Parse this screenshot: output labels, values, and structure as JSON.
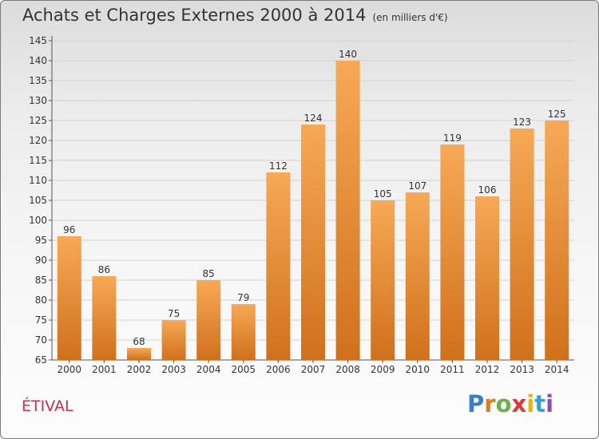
{
  "title": "Achats et Charges Externes 2000 à 2014",
  "unit": "(en milliers d'€)",
  "commune": "ÉTIVAL",
  "logo": {
    "text": "Proxiti"
  },
  "chart_data": {
    "type": "bar",
    "categories": [
      "2000",
      "2001",
      "2002",
      "2003",
      "2004",
      "2005",
      "2006",
      "2007",
      "2008",
      "2009",
      "2010",
      "2011",
      "2012",
      "2013",
      "2014"
    ],
    "values": [
      96,
      86,
      68,
      75,
      85,
      79,
      112,
      124,
      140,
      105,
      107,
      119,
      106,
      123,
      125
    ],
    "ylim": [
      65,
      145
    ],
    "yticks": [
      65,
      70,
      75,
      80,
      85,
      90,
      95,
      100,
      105,
      110,
      115,
      120,
      125,
      130,
      135,
      140,
      145
    ],
    "grid": true,
    "colors": {
      "bar_top": "#f7a956",
      "bar_bottom": "#d0701c",
      "grid": "#d2d2d2"
    }
  }
}
